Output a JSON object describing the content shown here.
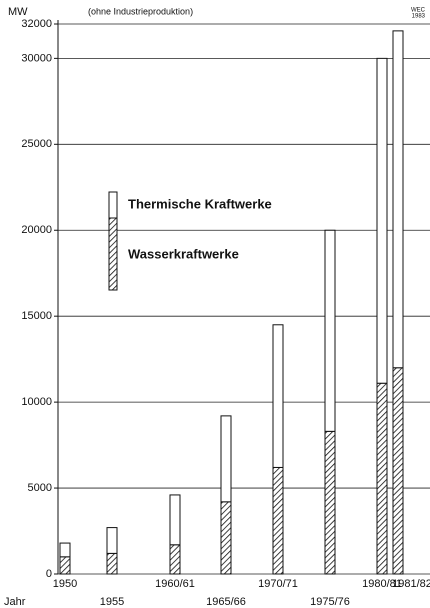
{
  "chart_data": {
    "type": "stacked_bar",
    "y_label": "MW",
    "subtitle": "(ohne Industrieproduktion)",
    "source": [
      "WEC",
      "1983"
    ],
    "x_label": "Jahr",
    "categories": [
      "1950",
      "1955",
      "1960/61",
      "1965/66",
      "1970/71",
      "1975/76",
      "1980/81",
      "1981/82"
    ],
    "series": [
      {
        "name": "Wasserkraftwerke",
        "color": "#ffffff",
        "hatch": true,
        "values": [
          1000,
          1200,
          1700,
          4200,
          6200,
          8300,
          11100,
          12000
        ]
      },
      {
        "name": "Thermische Kraftwerke",
        "color": "#ffffff",
        "hatch": false,
        "values": [
          800,
          1500,
          2900,
          5000,
          8300,
          11700,
          18900,
          19600
        ]
      }
    ],
    "ylim": [
      0,
      32000
    ],
    "yticks": [
      0,
      5000,
      10000,
      15000,
      20000,
      25000,
      30000,
      32000
    ],
    "grid": true,
    "legend": "upper left"
  }
}
